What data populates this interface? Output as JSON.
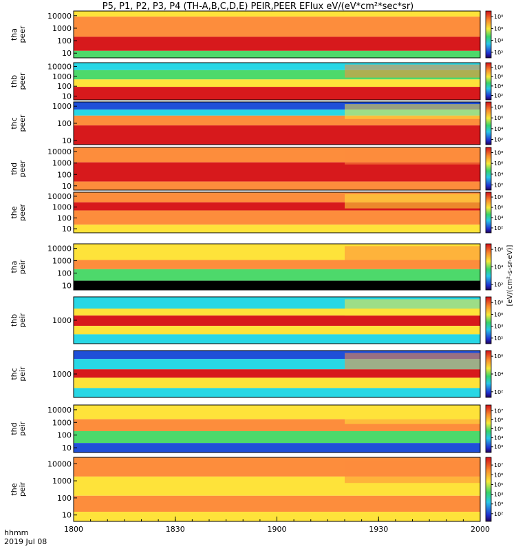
{
  "title": "P5, P1, P2, P3, P4 (TH-A,B,C,D,E) PEIR,PEER EFlux eV/(eV*cm²*sec*sr)",
  "footer": {
    "time_label": "hhmm",
    "date_label": "2019 Jul 08"
  },
  "colors": {
    "red": "#d7191c",
    "orange": "#fd8d3c",
    "yellow": "#fee33a",
    "green": "#4dd96b",
    "cyan": "#28d7e5",
    "blue": "#1f4fd8",
    "black": "#000000"
  },
  "chart_data": {
    "type": "heatmap",
    "x_axis": {
      "range": [
        "1800",
        "2000"
      ],
      "ticks": [
        "1800",
        "1830",
        "1900",
        "1930",
        "2000"
      ],
      "tick_minutes": [
        0,
        30,
        60,
        90,
        120
      ],
      "minor_tick_step_minutes": 5
    },
    "colorbar_label": "[eV/(cm²-s-sr-eV)]",
    "panels": [
      {
        "label_top": "tha",
        "label_bottom": "peer",
        "yscale": "log",
        "yticks": [
          "10",
          "100",
          "1000",
          "10000"
        ],
        "cbticks": [
          "10²",
          "10⁴",
          "10⁶",
          "10⁸"
        ]
      },
      {
        "label_top": "thb",
        "label_bottom": "peer",
        "yscale": "log",
        "yticks": [
          "10",
          "100",
          "1000",
          "10000"
        ],
        "cbticks": [
          "10²",
          "10⁴",
          "10⁶",
          "10⁸"
        ]
      },
      {
        "label_top": "thc",
        "label_bottom": "peer",
        "yscale": "log",
        "yticks": [
          "10",
          "100",
          "1000"
        ],
        "cbticks": [
          "10²",
          "10⁴",
          "10⁶",
          "10⁸"
        ]
      },
      {
        "label_top": "thd",
        "label_bottom": "peer",
        "yscale": "log",
        "yticks": [
          "10",
          "100",
          "1000",
          "10000"
        ],
        "cbticks": [
          "10²",
          "10⁴",
          "10⁶",
          "10⁸"
        ]
      },
      {
        "label_top": "the",
        "label_bottom": "peer",
        "yscale": "log",
        "yticks": [
          "10",
          "100",
          "1000",
          "10000"
        ],
        "cbticks": [
          "10²",
          "10⁴",
          "10⁶",
          "10⁸"
        ]
      },
      {
        "label_top": "tha",
        "label_bottom": "peir",
        "yscale": "log",
        "yticks": [
          "10",
          "100",
          "1000",
          "10000"
        ],
        "cbticks": [
          "10²",
          "10⁴",
          "10⁶"
        ]
      },
      {
        "label_top": "thb",
        "label_bottom": "peir",
        "yscale": "log",
        "yticks": [
          "1000"
        ],
        "cbticks": [
          "10²",
          "10⁴",
          "10⁶",
          "10⁸"
        ]
      },
      {
        "label_top": "thc",
        "label_bottom": "peir",
        "yscale": "log",
        "yticks": [
          "1000"
        ],
        "cbticks": [
          "10²",
          "10⁴",
          "10⁶"
        ]
      },
      {
        "label_top": "thd",
        "label_bottom": "peir",
        "yscale": "log",
        "yticks": [
          "10",
          "100",
          "1000",
          "10000"
        ],
        "cbticks": [
          "10³",
          "10⁴",
          "10⁵",
          "10⁶",
          "10⁷"
        ]
      },
      {
        "label_top": "the",
        "label_bottom": "peir",
        "yscale": "log",
        "yticks": [
          "10",
          "100",
          "1000",
          "10000"
        ],
        "cbticks": [
          "10²",
          "10³",
          "10⁴",
          "10⁵",
          "10⁶",
          "10⁷"
        ]
      }
    ]
  }
}
